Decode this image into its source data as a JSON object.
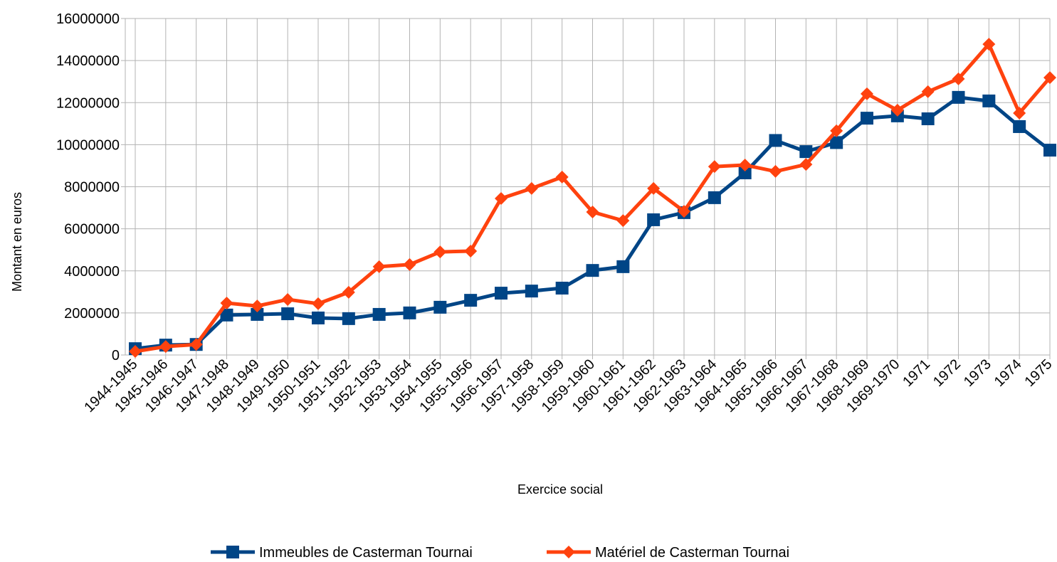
{
  "chart_data": {
    "type": "line",
    "x_label": "Exercice social",
    "y_label": "Montant en euros",
    "categories": [
      "1944-1945",
      "1945-1946",
      "1946-1947",
      "1947-1948",
      "1948-1949",
      "1949-1950",
      "1950-1951",
      "1951-1952",
      "1952-1953",
      "1953-1954",
      "1954-1955",
      "1955-1956",
      "1956-1957",
      "1957-1958",
      "1958-1959",
      "1959-1960",
      "1960-1961",
      "1961-1962",
      "1962-1963",
      "1963-1964",
      "1964-1965",
      "1965-1966",
      "1966-1967",
      "1967-1968",
      "1968-1969",
      "1969-1970",
      "1971",
      "1972",
      "1973",
      "1974",
      "1975"
    ],
    "series": [
      {
        "name": "Immeubles de Casterman Tournai",
        "color": "#004586",
        "marker": "square",
        "values": [
          300000,
          470000,
          500000,
          1900000,
          1930000,
          1960000,
          1760000,
          1730000,
          1930000,
          2000000,
          2270000,
          2600000,
          2940000,
          3040000,
          3180000,
          4020000,
          4200000,
          6430000,
          6770000,
          7480000,
          8660000,
          10200000,
          9670000,
          10100000,
          11260000,
          11370000,
          11230000,
          12250000,
          12080000,
          10860000,
          9740000
        ]
      },
      {
        "name": "Matériel de Casterman Tournai",
        "color": "#ff420e",
        "marker": "diamond",
        "values": [
          170000,
          400000,
          500000,
          2470000,
          2330000,
          2640000,
          2440000,
          2980000,
          4200000,
          4300000,
          4900000,
          4940000,
          7440000,
          7920000,
          8460000,
          6800000,
          6390000,
          7920000,
          6830000,
          8960000,
          9030000,
          8730000,
          9060000,
          10660000,
          12420000,
          11640000,
          12520000,
          13130000,
          14780000,
          11500000,
          13190000
        ]
      }
    ],
    "ylim": [
      0,
      16000000
    ],
    "yticks": [
      0,
      2000000,
      4000000,
      6000000,
      8000000,
      10000000,
      12000000,
      14000000,
      16000000
    ],
    "grid": true,
    "legend": "bottom"
  }
}
